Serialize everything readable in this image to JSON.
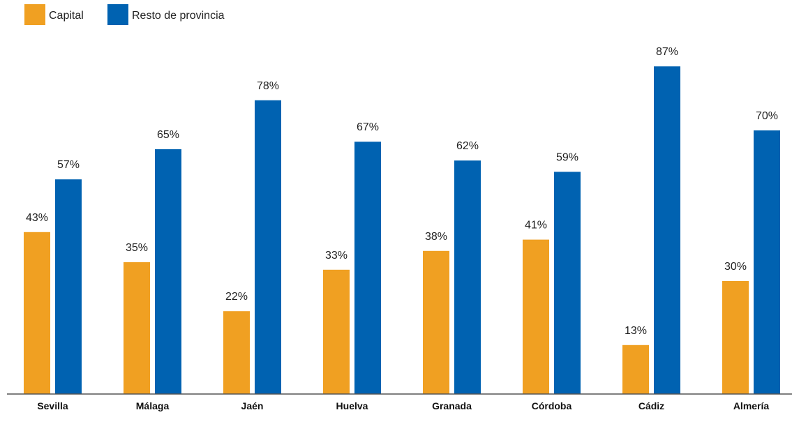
{
  "colors": {
    "capital": "#f0a022",
    "resto": "#0062b1",
    "axis": "#555555"
  },
  "chart_data": {
    "type": "bar",
    "categories": [
      "Sevilla",
      "Málaga",
      "Jaén",
      "Huelva",
      "Granada",
      "Córdoba",
      "Cádiz",
      "Almería"
    ],
    "series": [
      {
        "name": "Capital",
        "values": [
          43,
          35,
          22,
          33,
          38,
          41,
          13,
          30
        ],
        "labels": [
          "43%",
          "35%",
          "22%",
          "33%",
          "38%",
          "41%",
          "13%",
          "30%"
        ]
      },
      {
        "name": "Resto de provincia",
        "values": [
          57,
          65,
          78,
          67,
          62,
          59,
          87,
          70
        ],
        "labels": [
          "57%",
          "65%",
          "78%",
          "67%",
          "62%",
          "59%",
          "87%",
          "70%"
        ]
      }
    ],
    "unit": "%",
    "ylim": [
      0,
      100
    ],
    "grid": false,
    "legend_position": "top-left"
  }
}
